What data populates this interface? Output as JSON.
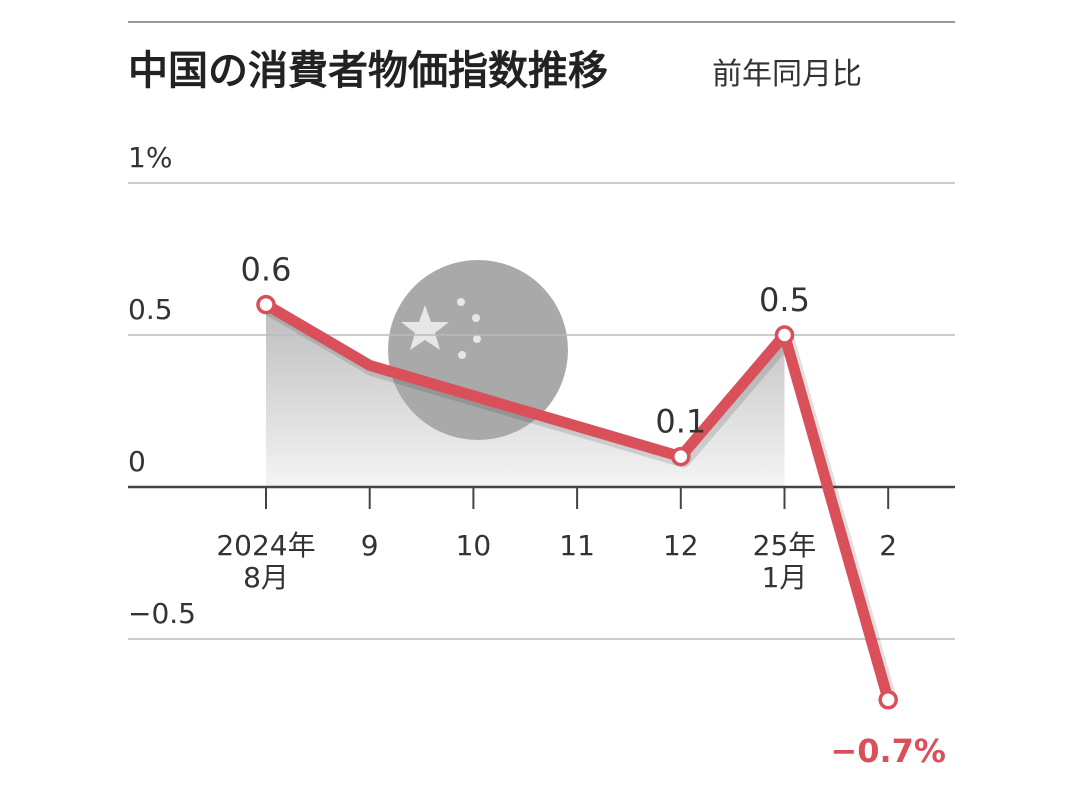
{
  "chart_data": {
    "type": "line",
    "title": "中国の消費者物価指数推移",
    "subtitle": "前年同月比",
    "categories": [
      "2024年\n8月",
      "9",
      "10",
      "11",
      "12",
      "25年\n1月",
      "2"
    ],
    "values": [
      0.6,
      0.4,
      0.3,
      0.2,
      0.1,
      0.5,
      -0.7
    ],
    "value_labels": [
      "0.6",
      null,
      null,
      null,
      "0.1",
      "0.5",
      "−0.7%"
    ],
    "color": "#d9505a",
    "ylim": [
      -0.7,
      1
    ],
    "yticks": [
      {
        "value": 1,
        "label": "1%"
      },
      0.5,
      0,
      {
        "value": -0.5,
        "label": "−0.5"
      }
    ],
    "grid": true
  }
}
